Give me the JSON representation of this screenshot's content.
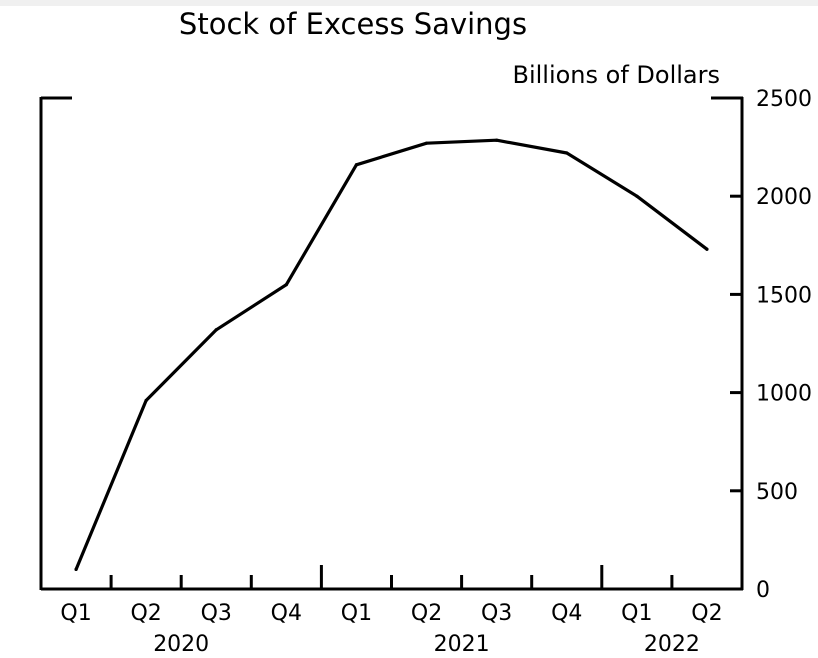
{
  "chart_data": {
    "type": "line",
    "title": "Stock of Excess Savings",
    "unit_label": "Billions of Dollars",
    "y_axis_side": "right",
    "ylim": [
      0,
      2500
    ],
    "yticks": [
      0,
      500,
      1000,
      1500,
      2000,
      2500
    ],
    "quarters": [
      "Q1",
      "Q2",
      "Q3",
      "Q4",
      "Q1",
      "Q2",
      "Q3",
      "Q4",
      "Q1",
      "Q2"
    ],
    "years": [
      {
        "label": "2020",
        "span": [
          0,
          4
        ]
      },
      {
        "label": "2021",
        "span": [
          4,
          8
        ]
      },
      {
        "label": "2022",
        "span": [
          8,
          10
        ]
      }
    ],
    "x_domain": [
      0,
      10
    ],
    "series": [
      {
        "x": [
          0.5,
          1.5,
          2.5,
          3.5,
          4.5,
          5.5,
          6.5,
          7.5,
          8.5,
          9.5
        ],
        "values": [
          100,
          960,
          1320,
          1550,
          2160,
          2270,
          2285,
          2220,
          2000,
          1730
        ]
      }
    ],
    "grid": false,
    "legend": "none"
  }
}
